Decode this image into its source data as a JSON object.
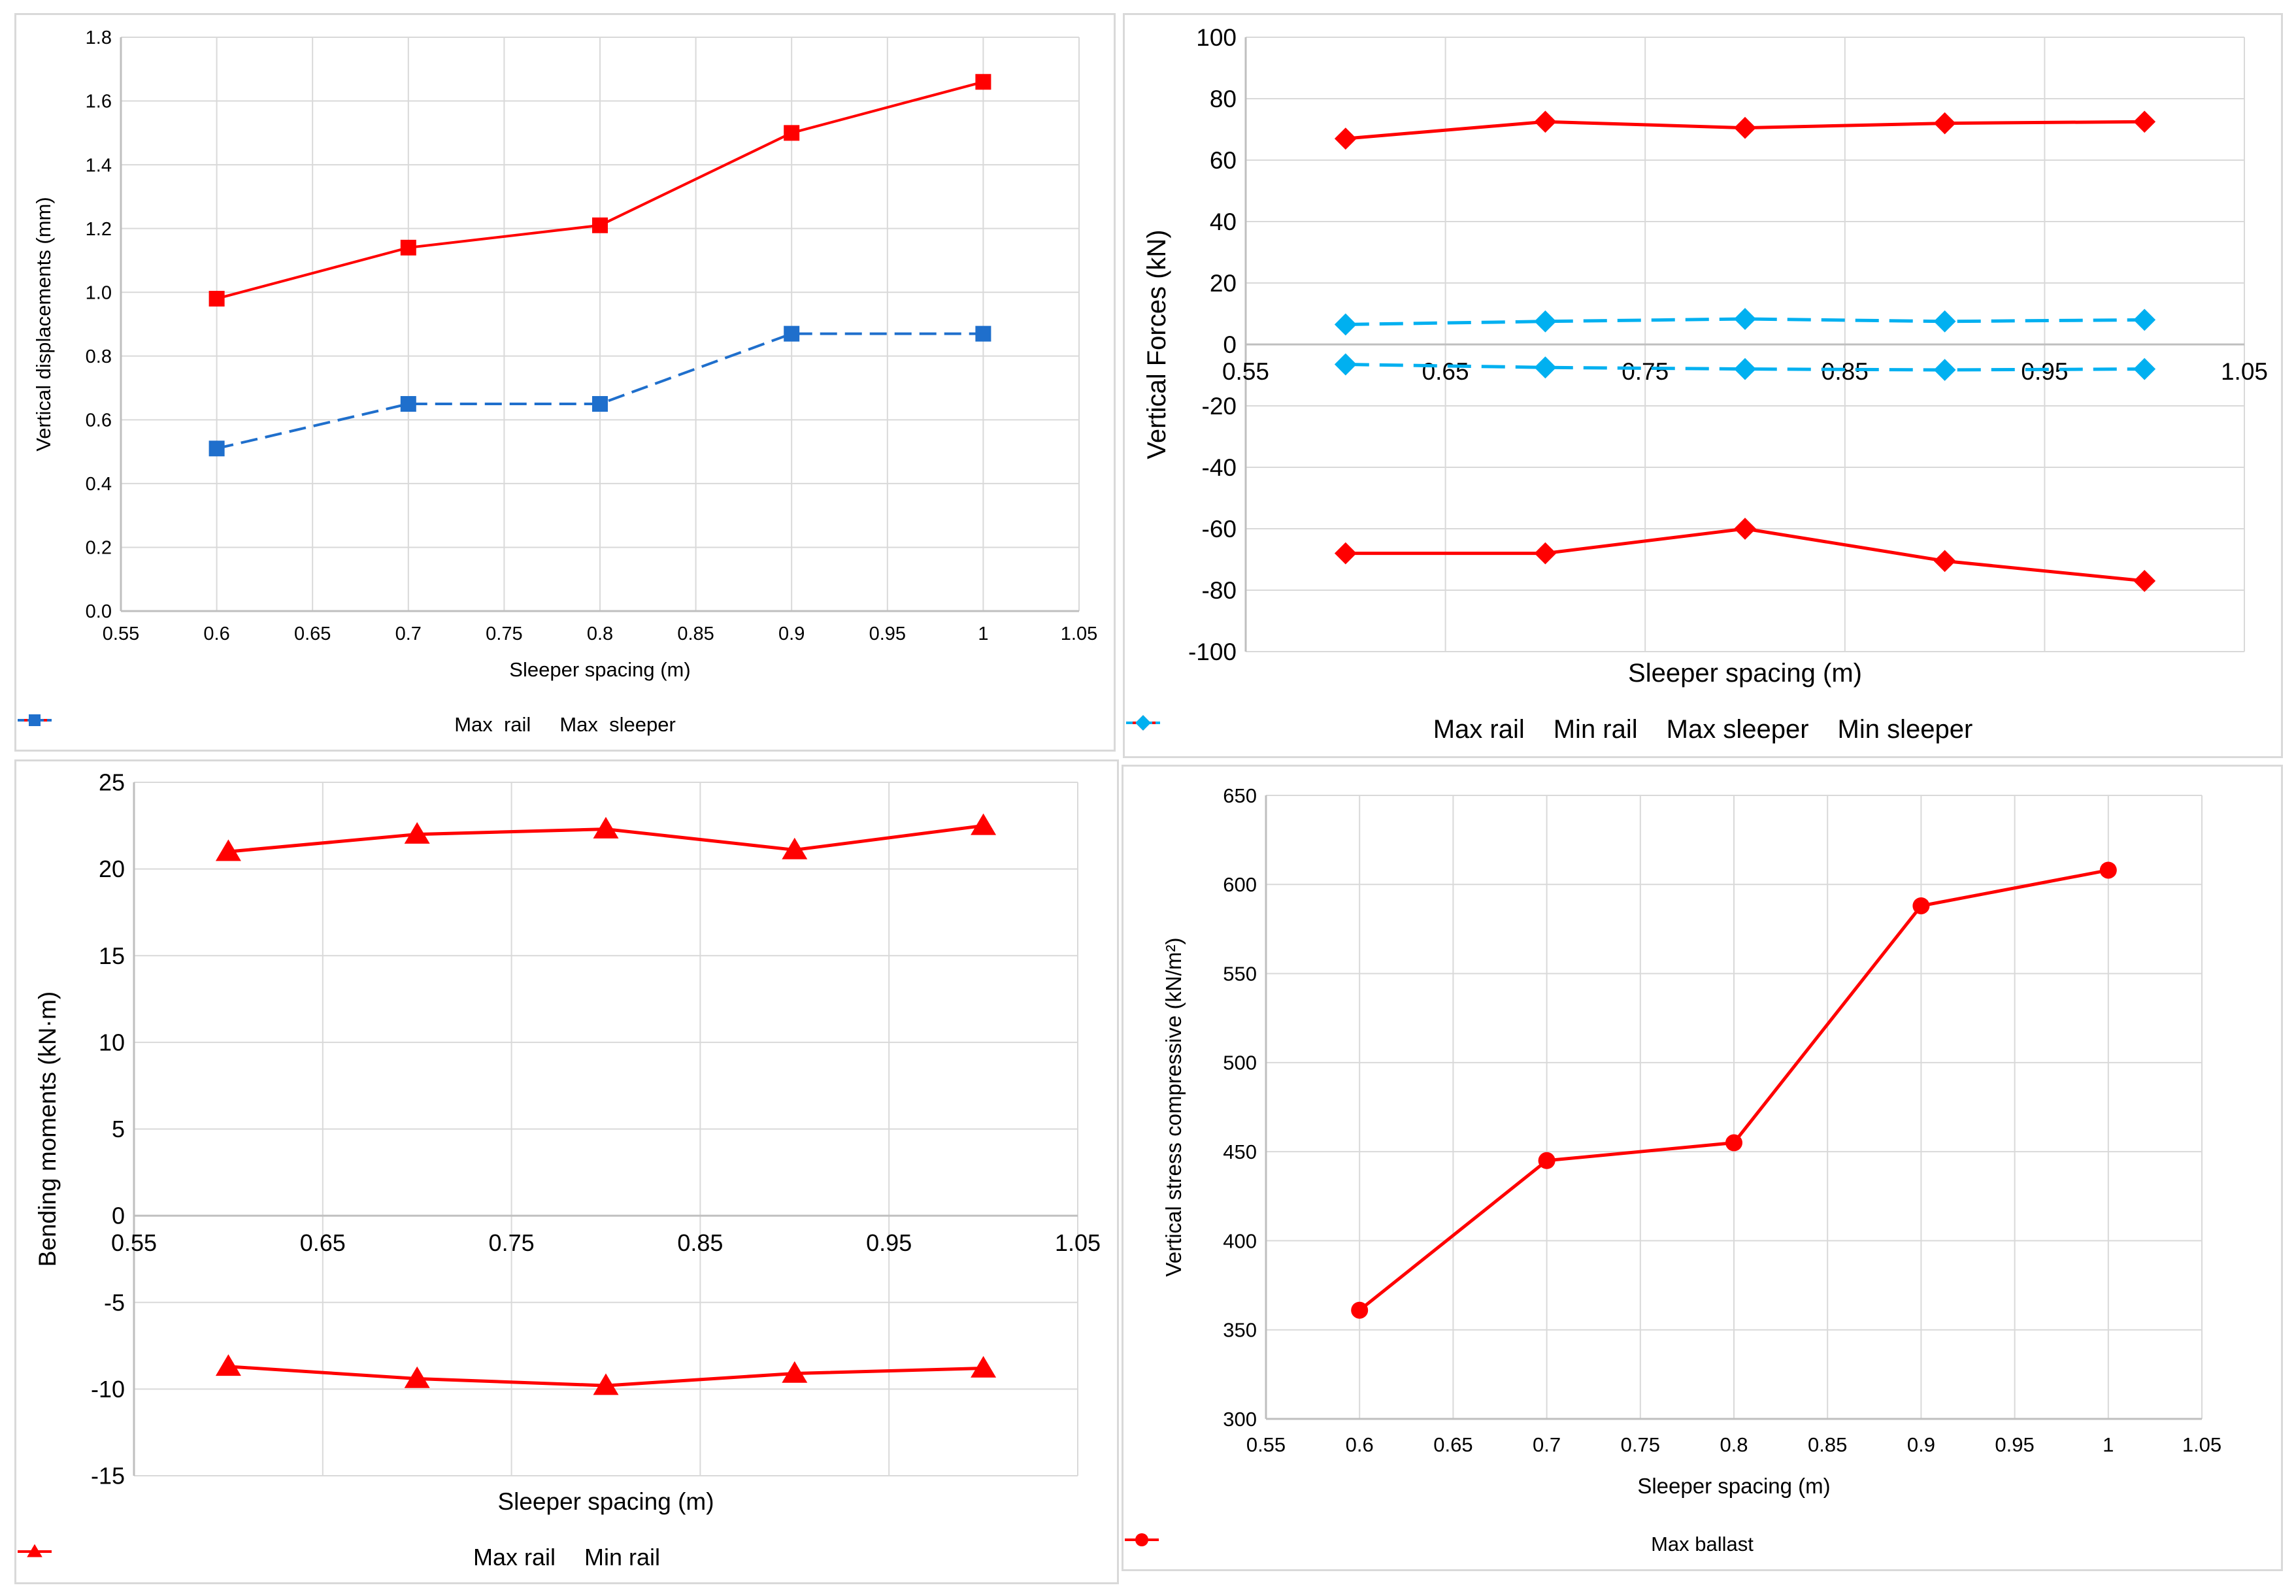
{
  "chart_data": [
    {
      "type": "line",
      "xlabel": "Sleeper spacing (m)",
      "ylabel": "Vertical displacements (mm)",
      "xlim": [
        0.55,
        1.05
      ],
      "ylim": [
        0,
        1.8
      ],
      "x_ticks": [
        "0.55",
        "0.6",
        "0.65",
        "0.7",
        "0.75",
        "0.8",
        "0.85",
        "0.9",
        "0.95",
        "1",
        "1.05"
      ],
      "y_ticks": [
        "0.0",
        "0.2",
        "0.4",
        "0.6",
        "0.8",
        "1.0",
        "1.2",
        "1.4",
        "1.6",
        "1.8"
      ],
      "grid": true,
      "legend_position": "bottom",
      "x": [
        0.6,
        0.7,
        0.8,
        0.9,
        1.0
      ],
      "series": [
        {
          "name": "Max  rail",
          "values": [
            0.98,
            1.14,
            1.21,
            1.5,
            1.66
          ],
          "color": "#ff0000",
          "marker": "square",
          "dash": "solid"
        },
        {
          "name": "Max  sleeper",
          "values": [
            0.51,
            0.65,
            0.65,
            0.87,
            0.87
          ],
          "color": "#1f6fcc",
          "marker": "square",
          "dash": "dashed"
        }
      ]
    },
    {
      "type": "line",
      "xlabel": "Sleeper spacing (m)",
      "ylabel": "Vertical Forces  (kN)",
      "xlim": [
        0.55,
        1.05
      ],
      "ylim": [
        -100,
        100
      ],
      "x_ticks": [
        "0.55",
        "0.65",
        "0.75",
        "0.85",
        "0.95",
        "1.05"
      ],
      "y_ticks": [
        "-100",
        "-80",
        "-60",
        "-40",
        "-20",
        "0",
        "20",
        "40",
        "60",
        "80",
        "100"
      ],
      "grid": true,
      "legend_position": "bottom",
      "x": [
        0.6,
        0.7,
        0.8,
        0.9,
        1.0
      ],
      "series": [
        {
          "name": "Max rail",
          "values": [
            67,
            72.5,
            70.5,
            72,
            72.5
          ],
          "color": "#ff0000",
          "marker": "diamond",
          "dash": "solid"
        },
        {
          "name": "Min rail",
          "values": [
            -68,
            -68,
            -60,
            -70.5,
            -77
          ],
          "color": "#ff0000",
          "marker": "diamond",
          "dash": "solid"
        },
        {
          "name": "Max sleeper",
          "values": [
            6.5,
            7.5,
            8.3,
            7.5,
            8
          ],
          "color": "#00b0f0",
          "marker": "diamond",
          "dash": "dashed"
        },
        {
          "name": "Min sleeper",
          "values": [
            -6.5,
            -7.5,
            -8,
            -8.3,
            -8
          ],
          "color": "#00b0f0",
          "marker": "diamond",
          "dash": "dashed"
        }
      ]
    },
    {
      "type": "line",
      "xlabel": "Sleeper spacing (m)",
      "ylabel": "Bending moments (kN·m)",
      "xlim": [
        0.55,
        1.05
      ],
      "ylim": [
        -15,
        25
      ],
      "x_ticks": [
        "0.55",
        "0.65",
        "0.75",
        "0.85",
        "0.95",
        "1.05"
      ],
      "y_ticks": [
        "-15",
        "-10",
        "-5",
        "0",
        "5",
        "10",
        "15",
        "20",
        "25"
      ],
      "grid": true,
      "legend_position": "bottom",
      "x": [
        0.6,
        0.7,
        0.8,
        0.9,
        1.0
      ],
      "series": [
        {
          "name": "Max rail",
          "values": [
            21,
            22,
            22.3,
            21.1,
            22.5
          ],
          "color": "#ff0000",
          "marker": "triangle",
          "dash": "solid"
        },
        {
          "name": "Min rail",
          "values": [
            -8.7,
            -9.4,
            -9.8,
            -9.1,
            -8.8
          ],
          "color": "#ff0000",
          "marker": "triangle",
          "dash": "solid"
        }
      ]
    },
    {
      "type": "line",
      "xlabel": "Sleeper spacing (m)",
      "ylabel": "Vertical stress compressive  (kN/m²)",
      "xlim": [
        0.55,
        1.05
      ],
      "ylim": [
        300,
        650
      ],
      "x_ticks": [
        "0.55",
        "0.6",
        "0.65",
        "0.7",
        "0.75",
        "0.8",
        "0.85",
        "0.9",
        "0.95",
        "1",
        "1.05"
      ],
      "y_ticks": [
        "300",
        "350",
        "400",
        "450",
        "500",
        "550",
        "600",
        "650"
      ],
      "grid": true,
      "legend_position": "bottom",
      "x": [
        0.6,
        0.7,
        0.8,
        0.9,
        1.0
      ],
      "series": [
        {
          "name": "Max ballast",
          "values": [
            361,
            445,
            455,
            588,
            608
          ],
          "color": "#ff0000",
          "marker": "circle",
          "dash": "solid"
        }
      ]
    }
  ]
}
